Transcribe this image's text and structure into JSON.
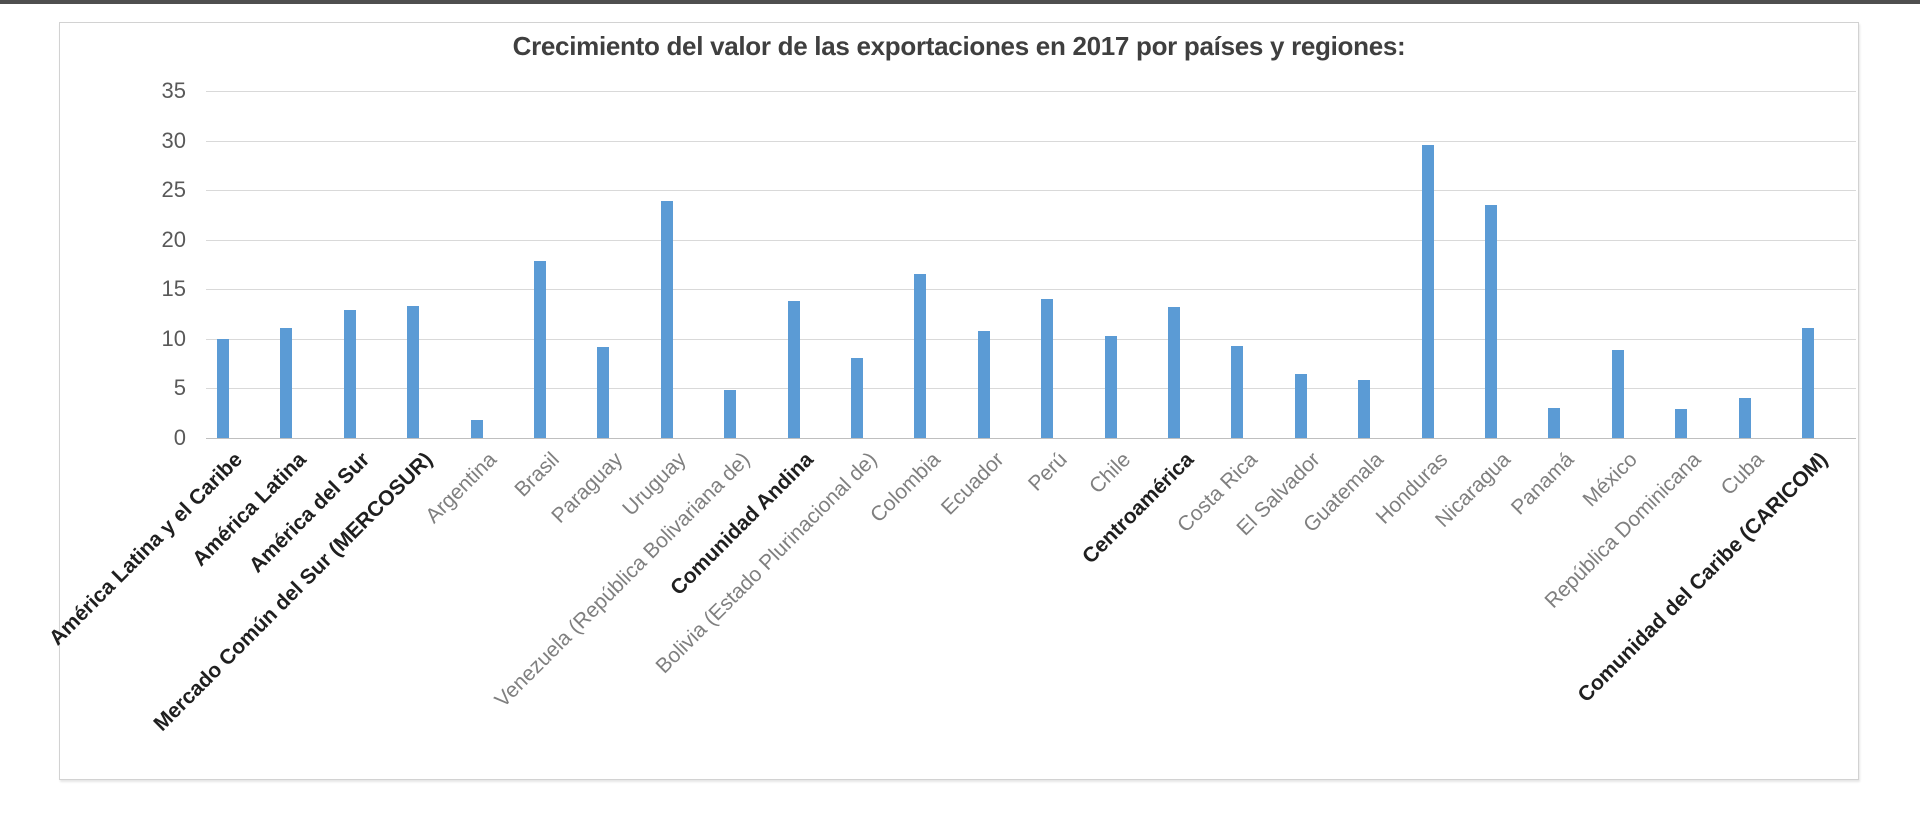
{
  "page": {
    "top_rule_color": "#4f4f4f",
    "background_color": "#ffffff"
  },
  "chart_data": {
    "type": "bar",
    "title": "Crecimiento del valor de las exportaciones en 2017 por países y regiones:",
    "categories": [
      "América Latina y el Caribe",
      "América Latina",
      "América del Sur",
      "Mercado Común del Sur (MERCOSUR)",
      "Argentina",
      "Brasil",
      "Paraguay",
      "Uruguay",
      "Venezuela (República Bolivariana de)",
      "Comunidad Andina",
      "Bolivia (Estado Plurinacional de)",
      "Colombia",
      "Ecuador",
      "Perú",
      "Chile",
      "Centroamérica",
      "Costa Rica",
      "El Salvador",
      "Guatemala",
      "Honduras",
      "Nicaragua",
      "Panamá",
      "México",
      "República Dominicana",
      "Cuba",
      "Comunidad del Caribe (CARICOM)"
    ],
    "values": [
      10.0,
      11.1,
      12.9,
      13.3,
      1.8,
      17.9,
      9.2,
      23.9,
      4.8,
      13.8,
      8.1,
      16.5,
      10.8,
      14.0,
      10.3,
      13.2,
      9.3,
      6.5,
      5.9,
      29.6,
      23.5,
      3.0,
      8.9,
      2.9,
      4.0,
      11.1
    ],
    "emphasized_categories": [
      true,
      true,
      true,
      true,
      false,
      false,
      false,
      false,
      false,
      true,
      false,
      false,
      false,
      false,
      false,
      true,
      false,
      false,
      false,
      false,
      false,
      false,
      false,
      false,
      false,
      true
    ],
    "xlabel": "",
    "ylabel": "",
    "ylim": [
      0,
      35
    ],
    "yticks": [
      0,
      5,
      10,
      15,
      20,
      25,
      30,
      35
    ],
    "grid": true,
    "legend_position": "none",
    "bar_color": "#5B9BD5",
    "title_color": "#3f3f3f",
    "tick_label_color": "#595959",
    "category_label_color": "#7f7f7f",
    "emphasized_label_color": "#1f1f1f",
    "gridline_color": "#d9d9d9"
  }
}
